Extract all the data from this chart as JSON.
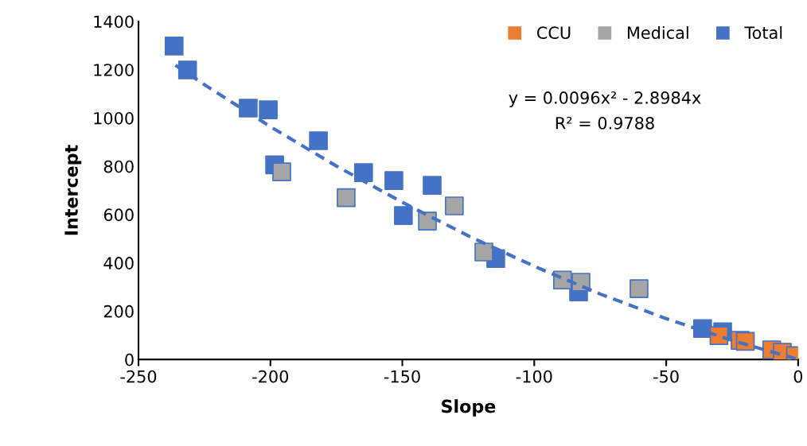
{
  "chart_data": {
    "type": "scatter",
    "xlabel": "Slope",
    "ylabel": "Intercept",
    "xlim": [
      -250,
      0
    ],
    "xticks": [
      -250,
      -200,
      -150,
      -100,
      -50,
      0
    ],
    "ylim": [
      0,
      1400
    ],
    "yticks": [
      0,
      200,
      400,
      600,
      800,
      1000,
      1200,
      1400
    ],
    "grid": false,
    "legend": "top right",
    "marker": "square",
    "annotations": [
      "y = 0.0096x² - 2.8984x",
      "R² = 0.9788"
    ],
    "series": [
      {
        "name": "CCU",
        "color": "#ed7d31",
        "x": [
          -30,
          -22,
          -20,
          -10,
          -6,
          -1
        ],
        "values": [
          99,
          79,
          75,
          40,
          30,
          16
        ]
      },
      {
        "name": "Medical",
        "color": "#a5a5a5",
        "x": [
          -195.7,
          -171.3,
          -140.5,
          -130.3,
          -119.1,
          -89.3,
          -82.3,
          -60.3
        ],
        "values": [
          777,
          670,
          573,
          636,
          445,
          329,
          320,
          293
        ]
      },
      {
        "name": "Total",
        "color": "#4472c4",
        "x": [
          -236.5,
          -231.4,
          -208.4,
          -200.8,
          -198.4,
          -181.8,
          -164.7,
          -153.2,
          -149.6,
          -138.7,
          -114.6,
          -83.2,
          -36.2,
          -28.6
        ],
        "values": [
          1298,
          1199,
          1041,
          1034,
          806,
          906,
          774,
          741,
          596,
          721,
          418,
          280,
          128,
          115
        ]
      },
      {
        "type": "line",
        "line_style": "dashed",
        "marker": "none",
        "color": "#4472c4",
        "x": [
          -236,
          -225,
          -200,
          -175,
          -150,
          -125,
          -100,
          -75,
          -50,
          -25,
          0
        ],
        "values": [
          1219,
          1138,
          964,
          801,
          651,
          512,
          386,
          271,
          169,
          79,
          0
        ]
      }
    ]
  }
}
